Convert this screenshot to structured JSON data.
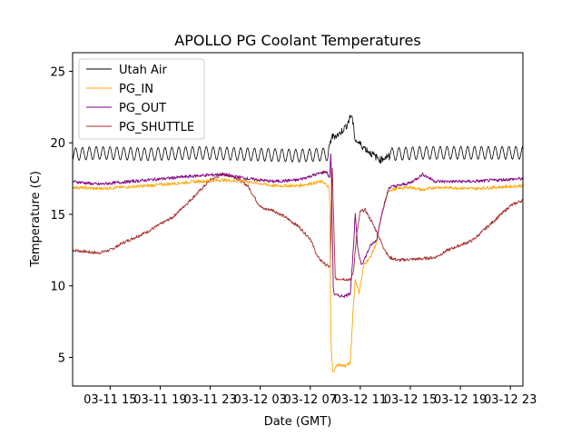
{
  "chart_data": {
    "type": "line",
    "title": "APOLLO PG Coolant Temperatures",
    "xlabel": "Date (GMT)",
    "ylabel": "Temperature (C)",
    "x_units": "hours since 03-11 00:00 GMT",
    "xlim": [
      12,
      48
    ],
    "ylim": [
      3.0,
      26.3
    ],
    "x_ticks": [
      {
        "value": 15,
        "label": "03-11 15"
      },
      {
        "value": 19,
        "label": "03-11 19"
      },
      {
        "value": 23,
        "label": "03-11 23"
      },
      {
        "value": 27,
        "label": "03-12 03"
      },
      {
        "value": 31,
        "label": "03-12 07"
      },
      {
        "value": 35,
        "label": "03-12 11"
      },
      {
        "value": 39,
        "label": "03-12 15"
      },
      {
        "value": 43,
        "label": "03-12 19"
      },
      {
        "value": 47,
        "label": "03-12 23"
      }
    ],
    "y_ticks": [
      {
        "value": 5,
        "label": "5"
      },
      {
        "value": 10,
        "label": "10"
      },
      {
        "value": 15,
        "label": "15"
      },
      {
        "value": 20,
        "label": "20"
      },
      {
        "value": 25,
        "label": "25"
      }
    ],
    "grid": false,
    "legend_position": "top-left",
    "series": [
      {
        "name": "Utah Air",
        "color": "#000000",
        "oscillation": {
          "amplitude": 0.45,
          "period_hours": 0.55
        },
        "x": [
          12,
          14,
          18,
          22,
          26,
          30,
          32.4,
          32.7,
          33.3,
          33.9,
          34.3,
          34.6,
          35.0,
          35.8,
          36.6,
          37.4,
          40,
          44,
          48
        ],
        "y": [
          19.2,
          19.3,
          19.2,
          19.3,
          19.2,
          19.1,
          19.2,
          20.4,
          20.6,
          21.2,
          22.0,
          20.2,
          19.9,
          19.3,
          18.8,
          19.2,
          19.3,
          19.3,
          19.3
        ],
        "oscillating_ranges": [
          [
            12,
            32.5
          ],
          [
            37.3,
            48
          ]
        ]
      },
      {
        "name": "PG_IN",
        "color": "#ffa500",
        "x": [
          12,
          14,
          18,
          22,
          24,
          26,
          28,
          30,
          32,
          32.55,
          32.65,
          32.8,
          33.2,
          33.8,
          34.2,
          34.4,
          34.6,
          34.9,
          35.3,
          35.8,
          36.3,
          36.7,
          37.3,
          38,
          39,
          40,
          41,
          44,
          48
        ],
        "y": [
          16.9,
          16.8,
          17.0,
          17.3,
          17.4,
          17.3,
          17.0,
          17.0,
          17.3,
          16.8,
          6.0,
          4.0,
          4.5,
          4.4,
          4.6,
          8.0,
          10.5,
          9.5,
          11.5,
          12.0,
          13.0,
          15.0,
          16.7,
          16.8,
          16.9,
          16.7,
          16.9,
          16.8,
          17.0
        ]
      },
      {
        "name": "PG_OUT",
        "color": "#800080",
        "x": [
          12,
          14,
          18,
          22,
          24,
          26,
          28,
          30,
          31.5,
          32.3,
          32.55,
          32.65,
          32.85,
          33.2,
          33.8,
          34.2,
          34.4,
          34.6,
          34.8,
          35.1,
          35.4,
          35.8,
          36.3,
          36.7,
          37.3,
          38,
          39,
          40,
          41,
          44,
          48
        ],
        "y": [
          17.3,
          17.1,
          17.4,
          17.7,
          17.8,
          17.5,
          17.3,
          17.4,
          17.8,
          18.0,
          17.5,
          19.5,
          9.5,
          9.3,
          9.3,
          9.5,
          12.0,
          15.0,
          12.5,
          11.5,
          12.0,
          12.8,
          13.2,
          15.0,
          16.9,
          17.0,
          17.2,
          17.8,
          17.3,
          17.3,
          17.5
        ]
      },
      {
        "name": "PG_SHUTTLE",
        "color": "#a52a2a",
        "x": [
          12,
          13,
          14,
          15,
          16,
          18,
          20,
          22,
          23,
          24,
          25,
          26,
          26.8,
          27.2,
          28,
          29,
          30,
          31,
          31.6,
          32.2,
          32.6,
          32.75,
          33,
          33.6,
          34.2,
          34.45,
          34.7,
          35.0,
          35.4,
          35.9,
          36.3,
          36.8,
          37.3,
          38,
          40,
          41,
          42,
          44,
          46,
          47,
          48
        ],
        "y": [
          12.5,
          12.4,
          12.3,
          12.5,
          13.0,
          13.8,
          14.8,
          16.5,
          17.4,
          17.8,
          17.6,
          17.0,
          15.8,
          15.4,
          15.3,
          14.8,
          14.2,
          13.3,
          12.0,
          11.5,
          11.3,
          18.5,
          10.5,
          10.5,
          10.4,
          11.0,
          13.5,
          15.2,
          15.3,
          14.5,
          13.8,
          12.8,
          12.0,
          11.8,
          11.9,
          12.0,
          12.5,
          13.2,
          14.8,
          15.6,
          16.0
        ]
      }
    ]
  }
}
